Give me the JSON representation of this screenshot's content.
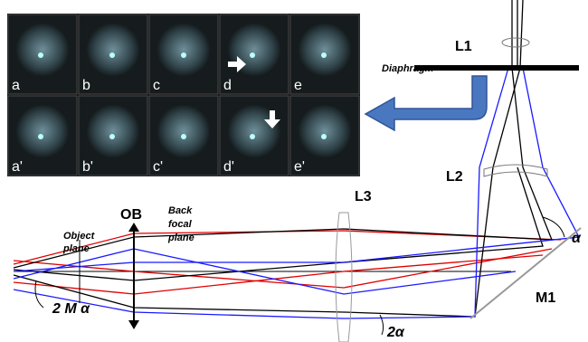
{
  "panels": {
    "top": [
      "a",
      "b",
      "c",
      "d",
      "e"
    ],
    "bottom": [
      "a'",
      "b'",
      "c'",
      "d'",
      "e'"
    ]
  },
  "labels": {
    "l1": "L1",
    "diaphragm": "Diaphragm",
    "l2": "L2",
    "l3": "L3",
    "ob": "OB",
    "back_focal_plane": [
      "Back",
      "focal",
      "plane"
    ],
    "object_plane": [
      "Object",
      "plane"
    ],
    "m1": "M1",
    "alpha": "α",
    "two_alpha": "2α",
    "two_m_alpha": "2 M α"
  }
}
